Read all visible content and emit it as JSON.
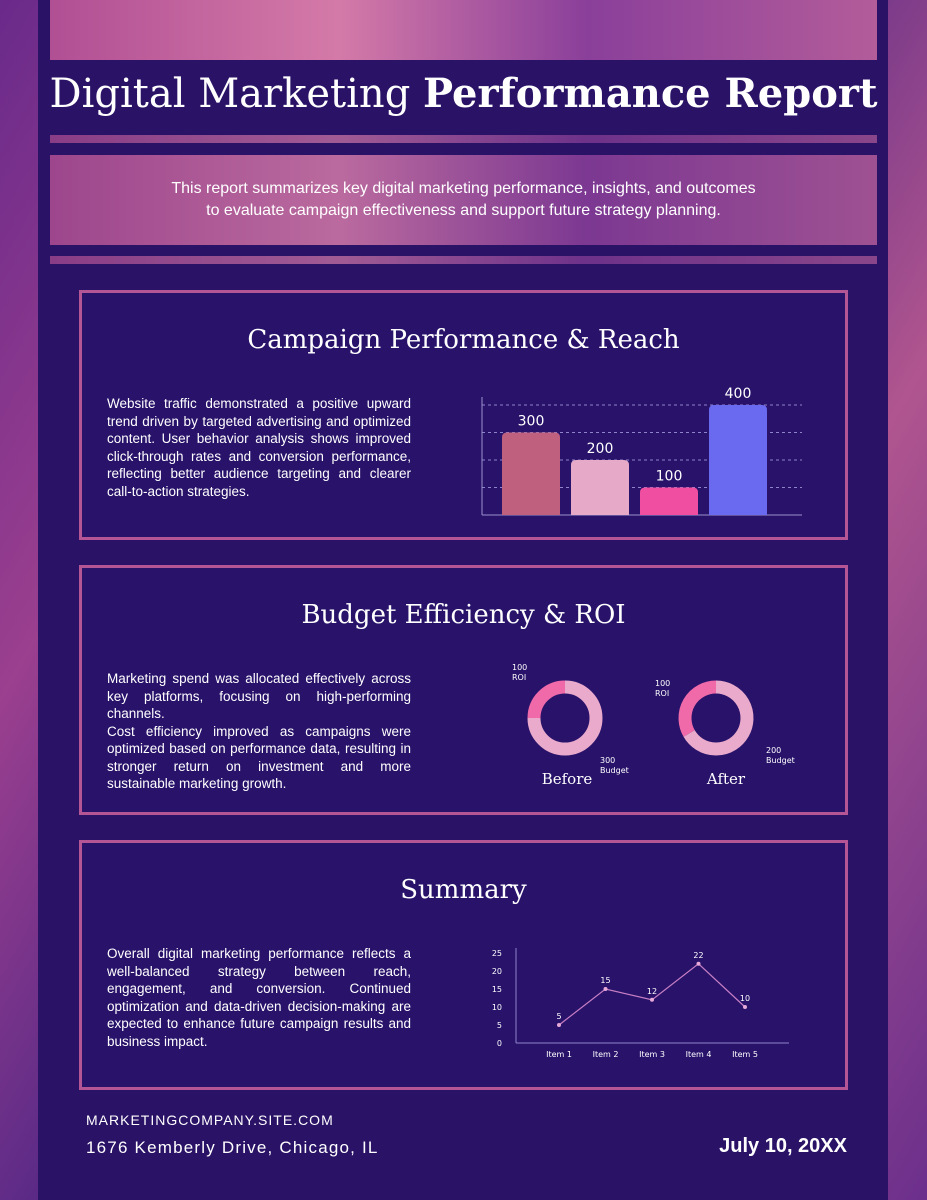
{
  "header": {
    "title_light": "Digital Marketing",
    "title_bold": "Performance Report",
    "intro_line1": "This report summarizes key digital marketing performance, insights, and outcomes",
    "intro_line2": "to evaluate campaign effectiveness and support future strategy planning."
  },
  "sections": {
    "campaign": {
      "title": "Campaign Performance & Reach",
      "text": "Website traffic demonstrated a positive upward trend driven by targeted advertising and optimized content. User behavior analysis shows improved click-through rates and conversion performance, reflecting better audience targeting and clearer call-to-action strategies."
    },
    "budget": {
      "title": "Budget Efficiency & ROI",
      "text_p1": "Marketing spend was allocated effectively across key platforms, focusing on high-performing channels.",
      "text_p2": "Cost efficiency improved as campaigns were optimized based on performance data, resulting in stronger return on investment and more sustainable marketing growth."
    },
    "summary": {
      "title": "Summary",
      "text": "Overall digital marketing performance reflects a well-balanced strategy between reach, engagement, and conversion. Continued optimization and data-driven decision-making are expected to enhance future campaign results and business impact."
    }
  },
  "chart_data": [
    {
      "type": "bar",
      "values": [
        300,
        200,
        100,
        400
      ],
      "colors": [
        "#c0607f",
        "#e6a9c8",
        "#f04ea0",
        "#6a6af0"
      ],
      "ylim": [
        0,
        400
      ]
    },
    {
      "type": "pie",
      "name": "Before",
      "slices": [
        {
          "label": "ROI",
          "value": 100,
          "label_value": "100",
          "color": "#f06aa9"
        },
        {
          "label": "Budget",
          "value": 300,
          "label_value": "300",
          "color": "#e9aacb"
        }
      ]
    },
    {
      "type": "pie",
      "name": "After",
      "slices": [
        {
          "label": "ROI",
          "value": 100,
          "label_value": "100",
          "color": "#f06aa9"
        },
        {
          "label": "Budget",
          "value": 200,
          "label_value": "200",
          "color": "#e9aacb"
        }
      ]
    },
    {
      "type": "line",
      "categories": [
        "Item 1",
        "Item 2",
        "Item 3",
        "Item 4",
        "Item 5"
      ],
      "values": [
        5,
        15,
        12,
        22,
        10
      ],
      "yticks": [
        0,
        5,
        10,
        15,
        20,
        25
      ],
      "ylim": [
        0,
        25
      ],
      "color": "#c77fc4"
    }
  ],
  "footer": {
    "site": "MARKETINGCOMPANY.SITE.COM",
    "address": "1676 Kemberly Drive, Chicago, IL",
    "date": "July 10, 20XX"
  }
}
